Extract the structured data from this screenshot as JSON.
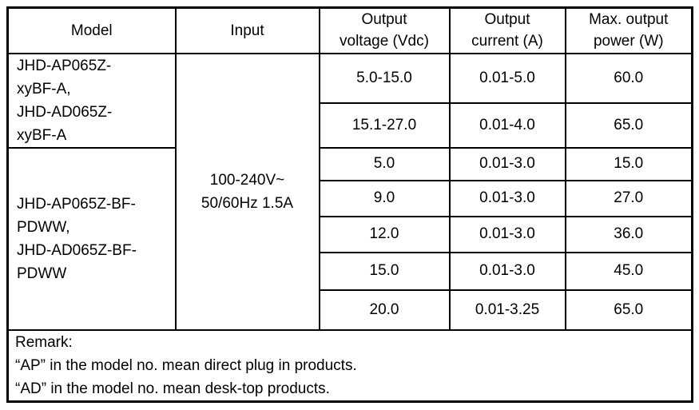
{
  "table": {
    "columns": [
      "Model",
      "Input",
      "Output\nvoltage (Vdc)",
      "Output\ncurrent (A)",
      "Max. output\npower (W)"
    ],
    "input_value": "100-240V~\n50/60Hz 1.5A",
    "groups": [
      {
        "model": "JHD-AP065Z-\nxyBF-A,\nJHD-AD065Z-\nxyBF-A",
        "rows": [
          {
            "voltage": "5.0-15.0",
            "current": "0.01-5.0",
            "power": "60.0"
          },
          {
            "voltage": "15.1-27.0",
            "current": "0.01-4.0",
            "power": "65.0"
          }
        ]
      },
      {
        "model": "JHD-AP065Z-BF-\nPDWW,\nJHD-AD065Z-BF-\nPDWW",
        "rows": [
          {
            "voltage": "5.0",
            "current": "0.01-3.0",
            "power": "15.0"
          },
          {
            "voltage": "9.0",
            "current": "0.01-3.0",
            "power": "27.0"
          },
          {
            "voltage": "12.0",
            "current": "0.01-3.0",
            "power": "36.0"
          },
          {
            "voltage": "15.0",
            "current": "0.01-3.0",
            "power": "45.0"
          },
          {
            "voltage": "20.0",
            "current": "0.01-3.25",
            "power": "65.0"
          }
        ]
      }
    ],
    "remark": {
      "title": "Remark:",
      "lines": [
        "“AP” in the model no. mean direct plug in products.",
        "“AD” in the model no. mean desk-top products."
      ]
    }
  },
  "colors": {
    "text": "#000000",
    "border": "#000000",
    "background": "#ffffff"
  }
}
